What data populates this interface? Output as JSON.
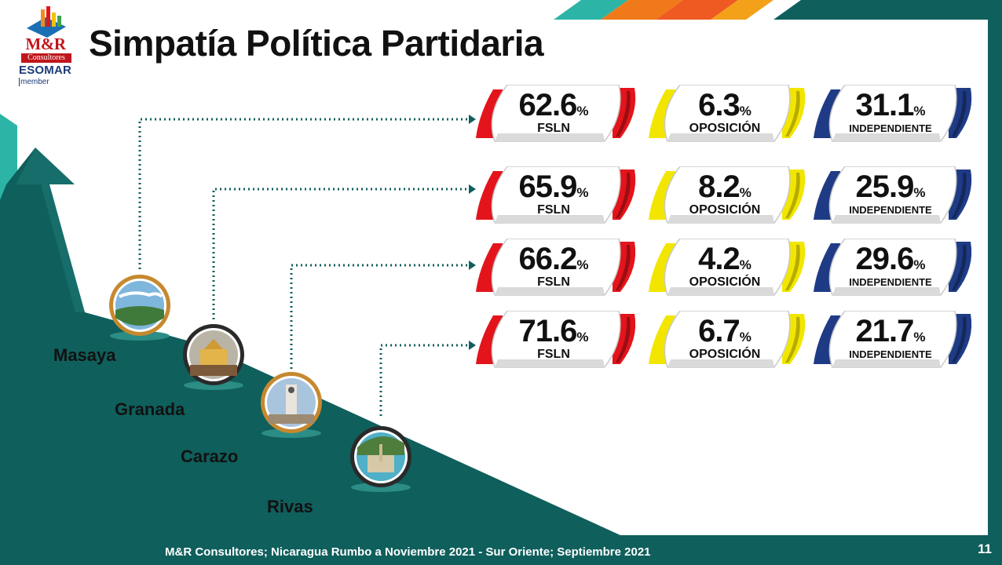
{
  "title": "Simpatía Política Partidaria",
  "logo": {
    "brand": "M&R",
    "sub": "Consultores",
    "esomar": "ESOMAR",
    "member": "member"
  },
  "rows": [
    {
      "city": "Masaya",
      "fsln": {
        "value": "62.6",
        "label": "FSLN"
      },
      "oposicion": {
        "value": "6.3",
        "label": "OPOSICIÓN"
      },
      "independiente": {
        "value": "31.1",
        "label": "INDEPENDIENTE"
      }
    },
    {
      "city": "Granada",
      "fsln": {
        "value": "65.9",
        "label": "FSLN"
      },
      "oposicion": {
        "value": "8.2",
        "label": "OPOSICIÓN"
      },
      "independiente": {
        "value": "25.9",
        "label": "INDEPENDIENTE"
      }
    },
    {
      "city": "Carazo",
      "fsln": {
        "value": "66.2",
        "label": "FSLN"
      },
      "oposicion": {
        "value": "4.2",
        "label": "OPOSICIÓN"
      },
      "independiente": {
        "value": "29.6",
        "label": "INDEPENDIENTE"
      }
    },
    {
      "city": "Rivas",
      "fsln": {
        "value": "71.6",
        "label": "FSLN"
      },
      "oposicion": {
        "value": "6.7",
        "label": "OPOSICIÓN"
      },
      "independiente": {
        "value": "21.7",
        "label": "INDEPENDIENTE"
      }
    }
  ],
  "percent_symbol": "%",
  "footer": "M&R Consultores; Nicaragua Rumbo a Noviembre 2021 - Sur Oriente; Septiembre 2021",
  "page_number": "11",
  "colors": {
    "teal": "#0f5f5c",
    "fsln": "#e3141b",
    "oposicion": "#f2e600",
    "independiente": "#1f3b86",
    "orange": "#f07a1a"
  }
}
